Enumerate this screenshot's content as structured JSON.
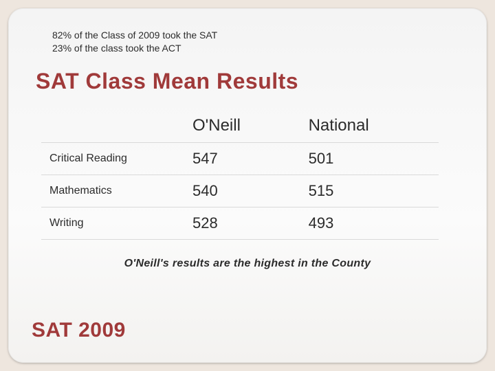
{
  "stats": {
    "line1": "82% of the Class of 2009 took the SAT",
    "line2": "23% of the class took the ACT"
  },
  "main_title": "SAT Class Mean Results",
  "table": {
    "columns": [
      "",
      "O'Neill",
      "National"
    ],
    "rows": [
      {
        "label": "Critical Reading",
        "oneill": "547",
        "national": "501"
      },
      {
        "label": "Mathematics",
        "oneill": "540",
        "national": "515"
      },
      {
        "label": "Writing",
        "oneill": "528",
        "national": "493"
      }
    ],
    "col_widths": [
      "36%",
      "32%",
      "32%"
    ],
    "border_color": "#d9d9d9",
    "header_fontsize": 24,
    "cell_fontsize": 22,
    "rowlabel_fontsize": 16
  },
  "footnote": "O'Neill's results are the highest in the County",
  "bottom_title": "SAT 2009",
  "colors": {
    "outer_bg": "#eee6de",
    "inner_bg_top": "#f4f4f4",
    "inner_bg_bottom": "#f3f2f0",
    "accent": "#a03a3a",
    "text": "#2b2b2b"
  }
}
